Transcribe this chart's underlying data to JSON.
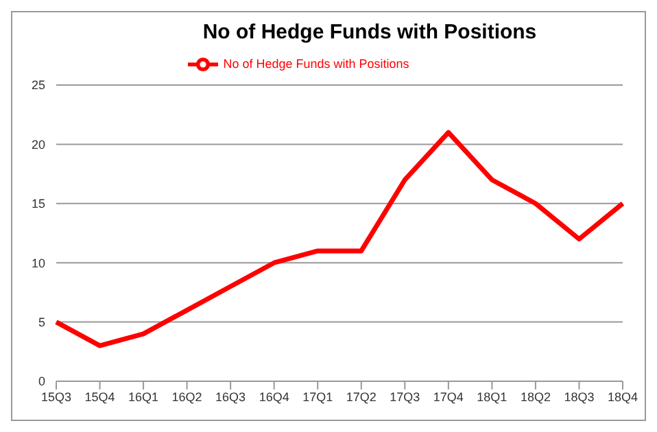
{
  "chart_data": {
    "type": "line",
    "title": "No of Hedge Funds with Positions",
    "categories": [
      "15Q3",
      "15Q4",
      "16Q1",
      "16Q2",
      "16Q3",
      "16Q4",
      "17Q1",
      "17Q2",
      "17Q3",
      "17Q4",
      "18Q1",
      "18Q2",
      "18Q3",
      "18Q4"
    ],
    "series": [
      {
        "name": "No of Hedge Funds with Positions",
        "color": "#ff0000",
        "values": [
          5,
          3,
          4,
          6,
          8,
          10,
          11,
          11,
          17,
          21,
          17,
          15,
          12,
          15
        ]
      }
    ],
    "ylim": [
      0,
      25
    ],
    "yticks": [
      0,
      5,
      10,
      15,
      20,
      25
    ],
    "grid": "y",
    "legend": "top",
    "marker": "none",
    "line_style": "solid"
  }
}
